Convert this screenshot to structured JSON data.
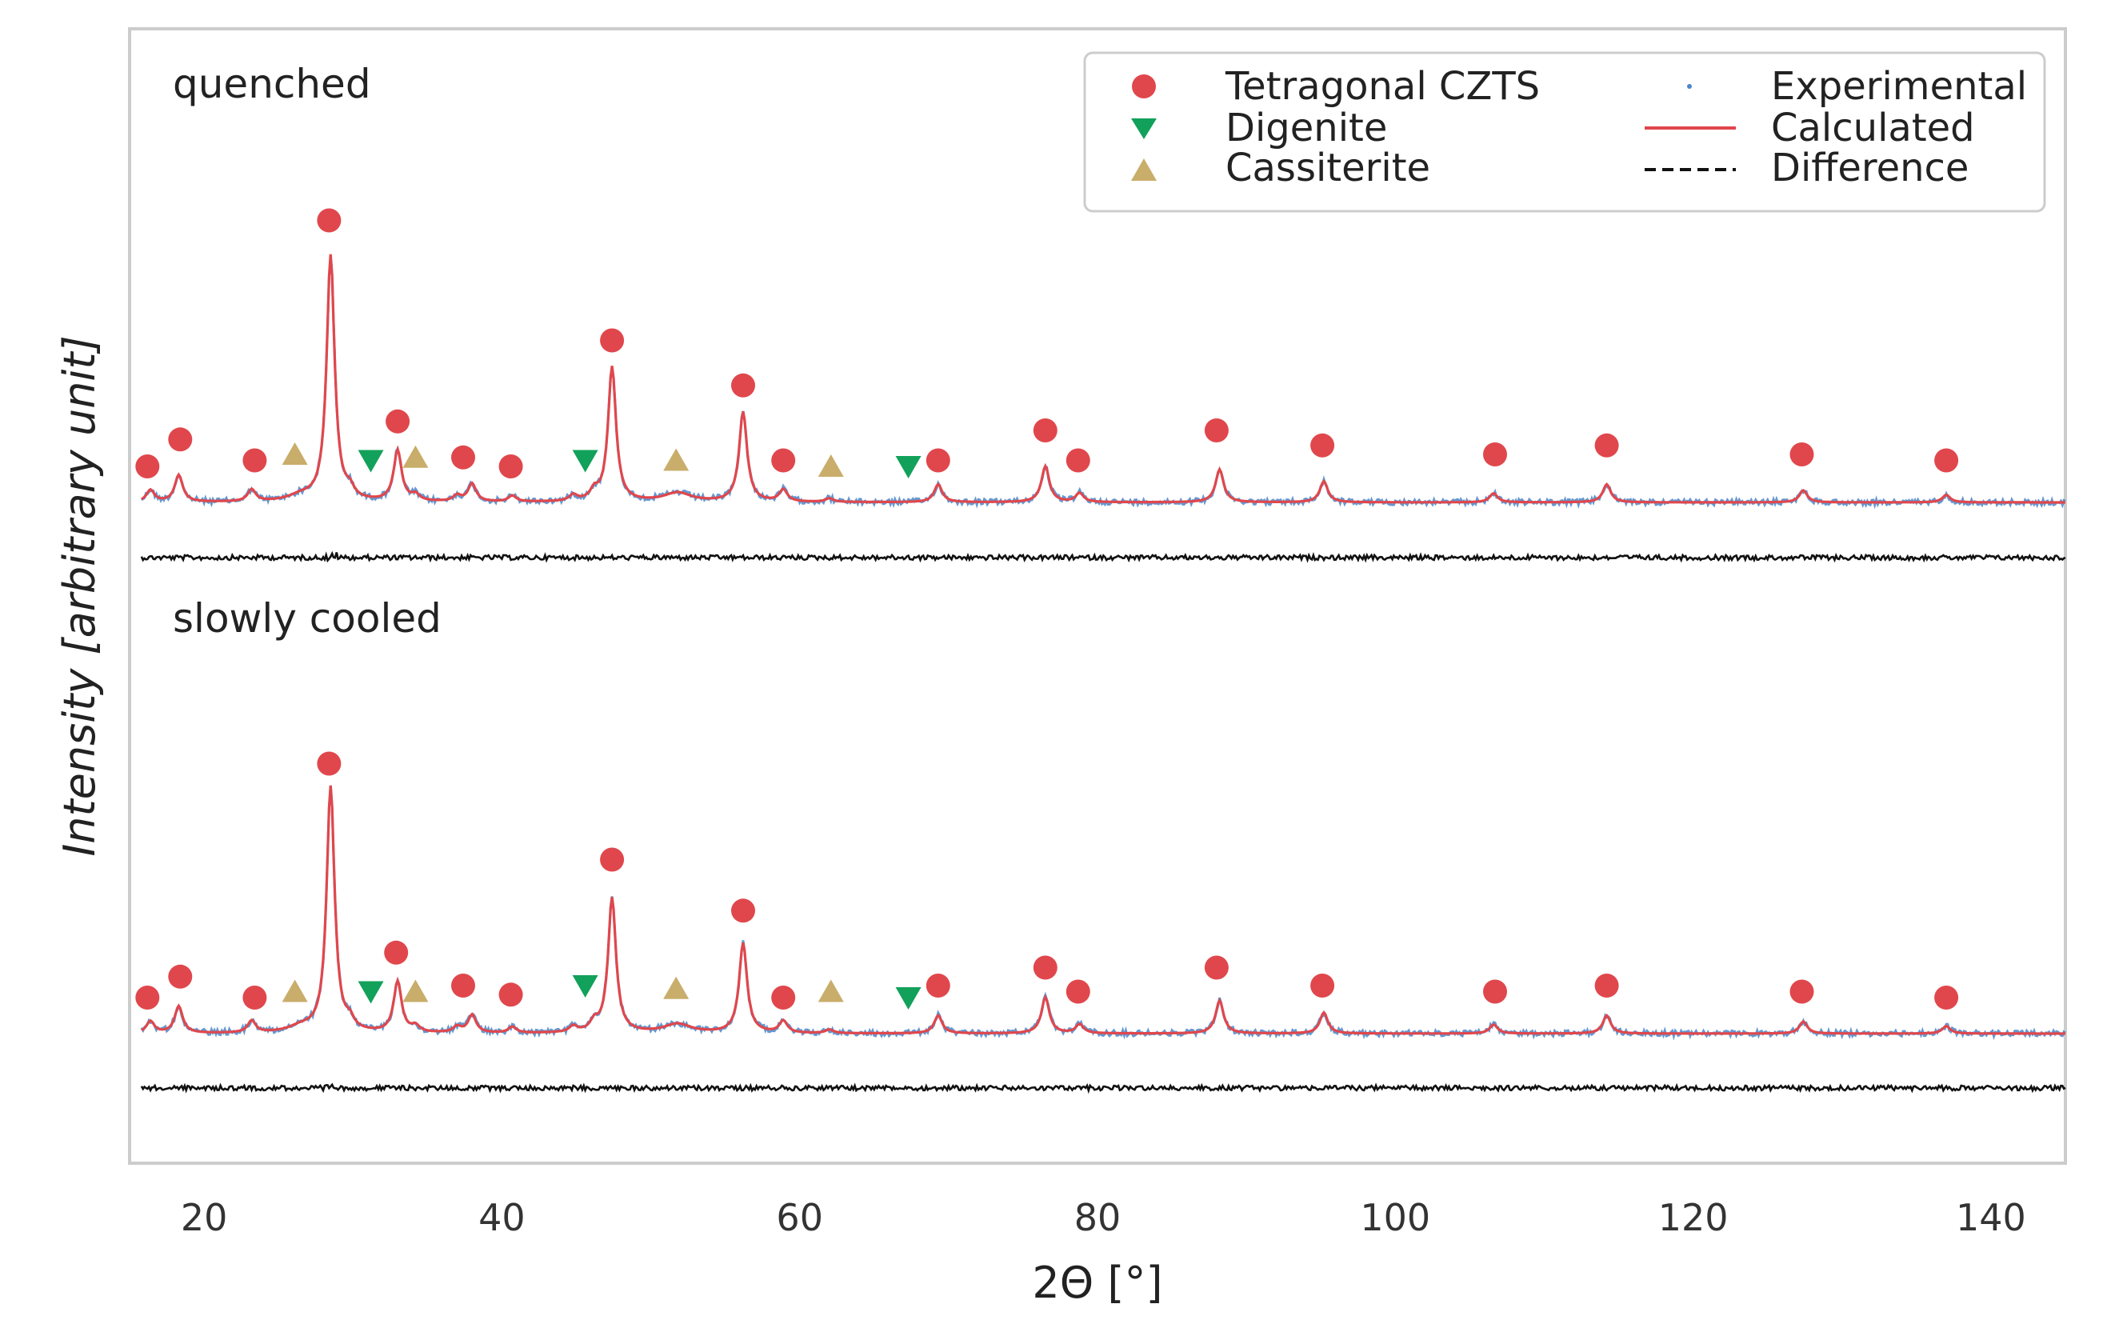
{
  "chart_data": {
    "type": "line",
    "title": "",
    "xlabel": "2Θ [°]",
    "ylabel_prefix": "Intensity [",
    "ylabel_italic": "arbitrary unit",
    "ylabel_suffix": "]",
    "xlim": [
      15,
      145
    ],
    "ylim": [
      0,
      100
    ],
    "x_ticks": [
      20,
      40,
      60,
      80,
      100,
      120,
      140
    ],
    "grid": false,
    "legend_position": "top-right",
    "colors": {
      "tetragonal": "#e0474c",
      "digenite": "#12a15a",
      "cassiterite": "#c9ad6a",
      "experimental": "#4a86c8",
      "calculated": "#e0474c",
      "difference": "#111111",
      "frame": "#cccccc"
    },
    "legend": {
      "markers": [
        {
          "key": "tetragonal",
          "label": "Tetragonal CZTS",
          "shape": "circle"
        },
        {
          "key": "digenite",
          "label": "Digenite",
          "shape": "triangle-down"
        },
        {
          "key": "cassiterite",
          "label": "Cassiterite",
          "shape": "triangle-up"
        }
      ],
      "lines": [
        {
          "key": "experimental",
          "label": "Experimental",
          "style": "dots"
        },
        {
          "key": "calculated",
          "label": "Calculated",
          "style": "solid"
        },
        {
          "key": "difference",
          "label": "Difference",
          "style": "dashed"
        }
      ]
    },
    "peaks": [
      {
        "pos": 16.4,
        "h": 4
      },
      {
        "pos": 18.3,
        "h": 9
      },
      {
        "pos": 23.2,
        "h": 4
      },
      {
        "pos": 26.5,
        "h": 1.8,
        "w": 1.0
      },
      {
        "pos": 28.5,
        "h": 82
      },
      {
        "pos": 29.8,
        "h": 3
      },
      {
        "pos": 33.0,
        "h": 17
      },
      {
        "pos": 34.2,
        "h": 2
      },
      {
        "pos": 37.0,
        "h": 2
      },
      {
        "pos": 38.0,
        "h": 6
      },
      {
        "pos": 40.7,
        "h": 2
      },
      {
        "pos": 44.8,
        "h": 2
      },
      {
        "pos": 46.2,
        "h": 3
      },
      {
        "pos": 47.4,
        "h": 45
      },
      {
        "pos": 51.8,
        "h": 3,
        "w": 1.1
      },
      {
        "pos": 56.2,
        "h": 30
      },
      {
        "pos": 58.9,
        "h": 4
      },
      {
        "pos": 62.0,
        "h": 1.2
      },
      {
        "pos": 69.3,
        "h": 6
      },
      {
        "pos": 76.5,
        "h": 12
      },
      {
        "pos": 78.8,
        "h": 3
      },
      {
        "pos": 88.2,
        "h": 11
      },
      {
        "pos": 95.2,
        "h": 7
      },
      {
        "pos": 106.6,
        "h": 3
      },
      {
        "pos": 114.2,
        "h": 6
      },
      {
        "pos": 127.4,
        "h": 4
      },
      {
        "pos": 137.0,
        "h": 2.5
      }
    ],
    "panels": [
      {
        "label": "quenched",
        "baseline": 0.0,
        "markers": {
          "tetragonal": [
            [
              16.2,
              12
            ],
            [
              18.4,
              21
            ],
            [
              23.4,
              14
            ],
            [
              28.4,
              94
            ],
            [
              33.0,
              27
            ],
            [
              37.4,
              15
            ],
            [
              40.6,
              12
            ],
            [
              47.4,
              54
            ],
            [
              56.2,
              39
            ],
            [
              58.9,
              14
            ],
            [
              69.3,
              14
            ],
            [
              76.5,
              24
            ],
            [
              78.7,
              14
            ],
            [
              88.0,
              24
            ],
            [
              95.1,
              19
            ],
            [
              106.7,
              16
            ],
            [
              114.2,
              19
            ],
            [
              127.3,
              16
            ],
            [
              137.0,
              14
            ]
          ],
          "digenite": [
            [
              31.2,
              14
            ],
            [
              45.6,
              14
            ],
            [
              67.3,
              12
            ]
          ],
          "cassiterite": [
            [
              26.1,
              16
            ],
            [
              34.2,
              15
            ],
            [
              51.7,
              14
            ],
            [
              62.1,
              12
            ]
          ]
        }
      },
      {
        "label": "slowly cooled",
        "baseline": 0.0,
        "markers": {
          "tetragonal": [
            [
              16.2,
              12
            ],
            [
              18.4,
              19
            ],
            [
              23.4,
              12
            ],
            [
              28.4,
              90
            ],
            [
              32.9,
              27
            ],
            [
              37.4,
              16
            ],
            [
              40.6,
              13
            ],
            [
              47.4,
              58
            ],
            [
              56.2,
              41
            ],
            [
              58.9,
              12
            ],
            [
              69.3,
              16
            ],
            [
              76.5,
              22
            ],
            [
              78.7,
              14
            ],
            [
              88.0,
              22
            ],
            [
              95.1,
              16
            ],
            [
              106.7,
              14
            ],
            [
              114.2,
              16
            ],
            [
              127.3,
              14
            ],
            [
              137.0,
              12
            ]
          ],
          "digenite": [
            [
              31.2,
              14
            ],
            [
              45.6,
              16
            ],
            [
              67.3,
              12
            ]
          ],
          "cassiterite": [
            [
              26.1,
              14
            ],
            [
              34.2,
              14
            ],
            [
              51.7,
              15
            ],
            [
              62.1,
              14
            ]
          ]
        }
      }
    ]
  }
}
